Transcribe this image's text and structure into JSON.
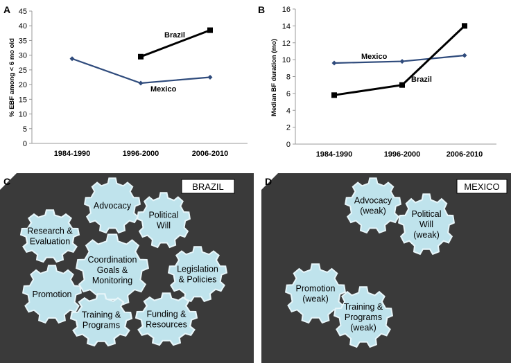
{
  "chart_data": [
    {
      "panel": "A",
      "type": "line",
      "title": "",
      "xlabel": "",
      "ylabel": "% EBF among < 6 mo old",
      "categories": [
        "1984-1990",
        "1996-2000",
        "2006-2010"
      ],
      "ylim": [
        0,
        45
      ],
      "yticks": [
        0,
        5,
        10,
        15,
        20,
        25,
        30,
        35,
        40,
        45
      ],
      "series": [
        {
          "name": "Brazil",
          "values": [
            null,
            29.5,
            38.5
          ],
          "color": "#000000",
          "marker": "square"
        },
        {
          "name": "Mexico",
          "values": [
            28.8,
            20.5,
            22.5
          ],
          "color": "#2f4b7c",
          "marker": "diamond"
        }
      ]
    },
    {
      "panel": "B",
      "type": "line",
      "title": "",
      "xlabel": "",
      "ylabel": "Median BF duration (mo)",
      "categories": [
        "1984-1990",
        "1996-2000",
        "2006-2010"
      ],
      "ylim": [
        0,
        16
      ],
      "yticks": [
        0,
        2,
        4,
        6,
        8,
        10,
        12,
        14,
        16
      ],
      "series": [
        {
          "name": "Mexico",
          "values": [
            9.6,
            9.8,
            10.5
          ],
          "color": "#2f4b7c",
          "marker": "diamond"
        },
        {
          "name": "Brazil",
          "values": [
            5.8,
            7.0,
            14.0
          ],
          "color": "#000000",
          "marker": "square"
        }
      ]
    }
  ],
  "diagrams": [
    {
      "panel": "C",
      "country": "BRAZIL",
      "gears": [
        "Advocacy",
        "Political\nWill",
        "Research &\nEvaluation",
        "Coordination\nGoals &\nMonitoring",
        "Legislation\n& Policies",
        "Promotion",
        "Training &\nPrograms",
        "Funding &\nResources"
      ]
    },
    {
      "panel": "D",
      "country": "MEXICO",
      "gears": [
        "Advocacy\n(weak)",
        "Political\nWill\n(weak)",
        "Promotion\n(weak)",
        "Training &\nPrograms\n(weak)"
      ]
    }
  ],
  "colors": {
    "panel_bg": "#3a3a3a",
    "gear_fill": "#bfe3ec",
    "gear_stroke": "#e8f6fa",
    "mexico_line": "#2f4b7c",
    "brazil_line": "#000000"
  }
}
